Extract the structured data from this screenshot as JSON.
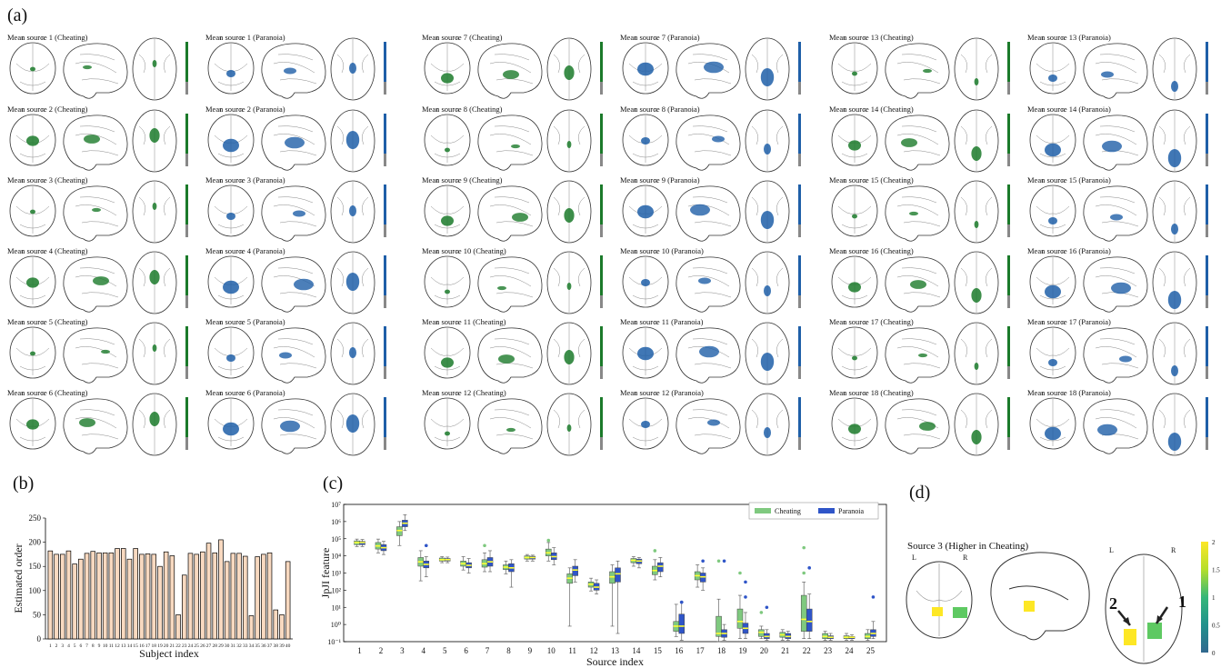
{
  "labels": {
    "a": "(a)",
    "b": "(b)",
    "c": "(c)",
    "d": "(d)"
  },
  "brain": {
    "hemi_left": "L",
    "hemi_right": "R",
    "colors": {
      "cheating": "#1b7a2a",
      "paranoia": "#1f5fa8"
    },
    "titles": [
      [
        "Mean source 1 (Cheating)",
        "Mean source 1 (Paranoia)",
        "Mean source 7 (Cheating)",
        "Mean source 7 (Paranoia)",
        "Mean source 13 (Cheating)",
        "Mean source 13 (Paranoia)"
      ],
      [
        "Mean source 2 (Cheating)",
        "Mean source 2 (Paranoia)",
        "Mean source 8 (Cheating)",
        "Mean source 8 (Paranoia)",
        "Mean source 14 (Cheating)",
        "Mean source 14 (Paranoia)"
      ],
      [
        "Mean source 3 (Cheating)",
        "Mean source 3 (Paranoia)",
        "Mean source 9 (Cheating)",
        "Mean source 9 (Paranoia)",
        "Mean source 15 (Cheating)",
        "Mean source 15 (Paranoia)"
      ],
      [
        "Mean source 4 (Cheating)",
        "Mean source 4 (Paranoia)",
        "Mean source 10 (Cheating)",
        "Mean source 10 (Paranoia)",
        "Mean source 16 (Cheating)",
        "Mean source 16 (Paranoia)"
      ],
      [
        "Mean source 5 (Cheating)",
        "Mean source 5 (Paranoia)",
        "Mean source 11 (Cheating)",
        "Mean source 11 (Paranoia)",
        "Mean source 17 (Cheating)",
        "Mean source 17 (Paranoia)"
      ],
      [
        "Mean source 6 (Cheating)",
        "Mean source 6 (Paranoia)",
        "Mean source 12 (Cheating)",
        "Mean source 12 (Paranoia)",
        "Mean source 18 (Cheating)",
        "Mean source 18 (Paranoia)"
      ]
    ]
  },
  "chart_data": [
    {
      "type": "bar",
      "panel": "(b)",
      "xlabel": "Subject index",
      "ylabel": "Estimated order",
      "ylim": [
        0,
        250
      ],
      "yticks": [
        0,
        50,
        100,
        150,
        200,
        250
      ],
      "categories": [
        "1",
        "2",
        "3",
        "4",
        "5",
        "6",
        "7",
        "8",
        "9",
        "10",
        "11",
        "12",
        "13",
        "14",
        "15",
        "16",
        "17",
        "18",
        "19",
        "20",
        "21",
        "22",
        "23",
        "24",
        "25",
        "26",
        "27",
        "28",
        "29",
        "30",
        "31",
        "32",
        "33",
        "34",
        "35",
        "36",
        "37",
        "38",
        "39",
        "40"
      ],
      "values": [
        182,
        175,
        175,
        182,
        155,
        165,
        177,
        181,
        178,
        178,
        178,
        187,
        187,
        165,
        187,
        175,
        176,
        175,
        150,
        180,
        172,
        50,
        132,
        177,
        175,
        180,
        198,
        178,
        205,
        160,
        177,
        177,
        171,
        48,
        170,
        175,
        178,
        60,
        50,
        160
      ],
      "bar_color": "#f8d9c0",
      "grid": false
    },
    {
      "type": "box",
      "panel": "(c)",
      "xlabel": "Source index",
      "ylabel": "JpJI feature",
      "yscale": "log",
      "ylim": [
        0.1,
        10000000
      ],
      "yticks": [
        "10⁻¹",
        "10⁰",
        "10¹",
        "10²",
        "10³",
        "10⁴",
        "10⁵",
        "10⁶",
        "10⁷"
      ],
      "categories": [
        "1",
        "2",
        "3",
        "4",
        "5",
        "6",
        "7",
        "8",
        "9",
        "10",
        "11",
        "12",
        "13",
        "14",
        "15",
        "16",
        "17",
        "18",
        "19",
        "20",
        "21",
        "22",
        "23",
        "24",
        "25"
      ],
      "legend": {
        "position": "top-right"
      },
      "series": [
        {
          "name": "Cheating",
          "color": "#7fc97f",
          "boxes": [
            [
              35000,
              45000,
              60000,
              75000,
              95000
            ],
            [
              15000,
              25000,
              38000,
              60000,
              95000
            ],
            [
              40000,
              150000,
              300000,
              500000,
              1000000
            ],
            [
              350,
              2500,
              4500,
              8000,
              20000
            ],
            [
              4000,
              5000,
              6000,
              7500,
              9000
            ],
            [
              1500,
              2500,
              3500,
              5000,
              9000
            ],
            [
              1200,
              2200,
              3500,
              6000,
              15000
            ],
            [
              900,
              1600,
              2200,
              3000,
              5000
            ],
            [
              5000,
              6500,
              8000,
              10000,
              12000
            ],
            [
              5000,
              10000,
              15000,
              25000,
              60000
            ],
            [
              0.8,
              250,
              500,
              900,
              2000
            ],
            [
              90,
              150,
              220,
              300,
              500
            ],
            [
              0.8,
              250,
              600,
              1200,
              3000
            ],
            [
              2500,
              4000,
              5500,
              7000,
              9000
            ],
            [
              400,
              800,
              1400,
              2500,
              6000
            ],
            [
              0.2,
              0.4,
              0.8,
              1.5,
              15
            ],
            [
              150,
              400,
              700,
              1200,
              3000
            ],
            [
              0.1,
              0.2,
              0.3,
              3,
              30
            ],
            [
              0.15,
              0.6,
              1.5,
              8,
              50
            ],
            [
              0.15,
              0.2,
              0.35,
              0.5,
              0.8
            ],
            [
              0.12,
              0.18,
              0.25,
              0.35,
              0.5
            ],
            [
              0.15,
              0.4,
              2,
              50,
              300
            ],
            [
              0.12,
              0.15,
              0.2,
              0.3,
              0.4
            ],
            [
              0.12,
              0.15,
              0.18,
              0.22,
              0.3
            ],
            [
              0.12,
              0.15,
              0.2,
              0.3,
              0.5
            ]
          ],
          "outliers": [
            [],
            [],
            [],
            [],
            [],
            [],
            [
              40000
            ],
            [],
            [],
            [
              80000
            ],
            [],
            [],
            [],
            [],
            [
              20000
            ],
            [],
            [],
            [
              5000
            ],
            [
              1000
            ],
            [
              5
            ],
            [],
            [
              1000,
              30000
            ],
            [],
            [],
            []
          ]
        },
        {
          "name": "Paranoia",
          "color": "#2f55c8",
          "boxes": [
            [
              35000,
              45000,
              60000,
              70000,
              90000
            ],
            [
              12000,
              20000,
              30000,
              45000,
              70000
            ],
            [
              300000,
              500000,
              800000,
              1200000,
              2500000
            ],
            [
              600,
              2000,
              3200,
              5000,
              9000
            ],
            [
              4000,
              5000,
              6000,
              7000,
              8500
            ],
            [
              1000,
              2000,
              2800,
              4000,
              7000
            ],
            [
              1200,
              2500,
              4500,
              8000,
              20000
            ],
            [
              150,
              1200,
              2000,
              3500,
              6000
            ],
            [
              5000,
              6500,
              8000,
              9500,
              11000
            ],
            [
              3000,
              6000,
              9000,
              15000,
              30000
            ],
            [
              300,
              700,
              1500,
              2500,
              6000
            ],
            [
              60,
              100,
              150,
              250,
              400
            ],
            [
              0.3,
              300,
              900,
              2000,
              5000
            ],
            [
              2000,
              3500,
              5000,
              6500,
              8000
            ],
            [
              600,
              1200,
              2500,
              4000,
              8000
            ],
            [
              0.12,
              0.3,
              0.8,
              4,
              20
            ],
            [
              100,
              300,
              600,
              1000,
              2000
            ],
            [
              0.12,
              0.18,
              0.3,
              0.5,
              1
            ],
            [
              0.15,
              0.3,
              0.6,
              1.2,
              5
            ],
            [
              0.12,
              0.15,
              0.2,
              0.3,
              0.5
            ],
            [
              0.12,
              0.15,
              0.2,
              0.3,
              0.4
            ],
            [
              0.15,
              0.4,
              1.5,
              8,
              60
            ],
            [
              0.12,
              0.15,
              0.18,
              0.22,
              0.3
            ],
            [
              0.12,
              0.15,
              0.18,
              0.2,
              0.25
            ],
            [
              0.15,
              0.2,
              0.3,
              0.5,
              1.5
            ]
          ],
          "outliers": [
            [],
            [],
            [],
            [
              40000
            ],
            [],
            [],
            [],
            [],
            [],
            [],
            [],
            [],
            [],
            [],
            [],
            [
              20
            ],
            [
              5000
            ],
            [
              5000
            ],
            [
              40,
              300
            ],
            [
              10
            ],
            [],
            [
              2000
            ],
            [],
            [],
            [
              40
            ]
          ]
        }
      ],
      "median_color": "#ffff33"
    }
  ],
  "panel_d": {
    "title": "Source 3 (Higher in Cheating)",
    "hemi_left": "L",
    "hemi_right": "R",
    "arrow_1": "1",
    "arrow_2": "2",
    "colorbar_ticks": [
      "2",
      "1.5",
      "1",
      "0.5",
      "0"
    ],
    "colorbar_colors": [
      "#fde725",
      "#b5de2b",
      "#35b779",
      "#21918c",
      "#31688e"
    ]
  }
}
